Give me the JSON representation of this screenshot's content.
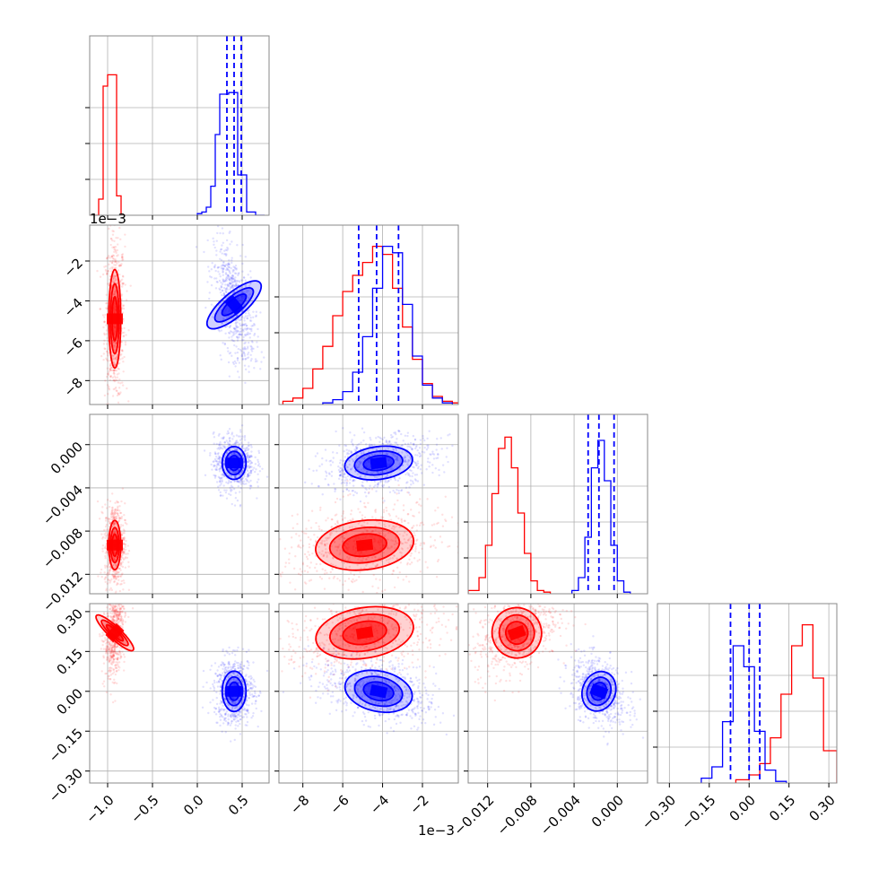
{
  "chart_data": {
    "type": "corner",
    "description_free": true,
    "colors": {
      "series_a": "#ff0000",
      "series_b": "#0000ff",
      "grid": "#b0b0b0",
      "frame": "#888888"
    },
    "series": [
      {
        "color": "#ff0000",
        "param_centers": [
          -0.92,
          -0.0049,
          -0.0093,
          0.22
        ],
        "param_spreads": [
          0.035,
          0.0013,
          0.0012,
          0.05
        ],
        "quantiles": null
      },
      {
        "color": "#0000ff",
        "param_centers": [
          0.41,
          -0.0042,
          -0.0017,
          0.0
        ],
        "param_spreads": [
          0.07,
          0.0009,
          0.0008,
          0.04
        ],
        "quantiles": [
          [
            0.33,
            0.41,
            0.49
          ],
          [
            -0.0052,
            -0.0043,
            -0.0032
          ],
          [
            -0.0027,
            -0.0017,
            -0.0003
          ],
          [
            -0.07,
            0.0,
            0.04
          ]
        ]
      }
    ],
    "axes": [
      {
        "range": [
          -1.2,
          0.8
        ],
        "ticks": [
          -1.0,
          -0.5,
          0.0,
          0.5
        ],
        "tick_labels": [
          "−1.0",
          "−0.5",
          "0.0",
          "0.5"
        ],
        "offset_text": ""
      },
      {
        "range": [
          -0.0092,
          -0.0002
        ],
        "ticks": [
          -0.008,
          -0.006,
          -0.004,
          -0.002
        ],
        "tick_labels": [
          "−8",
          "−6",
          "−4",
          "−2"
        ],
        "offset_text": "1e−3"
      },
      {
        "range": [
          -0.0138,
          0.0028
        ],
        "ticks": [
          -0.012,
          -0.008,
          -0.004,
          0.0
        ],
        "tick_labels": [
          "−0.012",
          "−0.008",
          "−0.004",
          "0.000"
        ],
        "offset_text": ""
      },
      {
        "range": [
          -0.345,
          0.33
        ],
        "ticks": [
          -0.3,
          -0.15,
          0.0,
          0.15,
          0.3
        ],
        "tick_labels": [
          "−0.30",
          "−0.15",
          "0.00",
          "0.15",
          "0.30"
        ],
        "offset_text": ""
      }
    ],
    "diagonal_histograms": [
      {
        "series_a_counts": [
          0,
          0.1,
          0.8,
          0.87,
          0.12,
          0
        ],
        "series_a_bins": [
          -1.2,
          -1.1,
          -1.05,
          -1.0,
          -0.9,
          -0.85,
          -0.8
        ],
        "series_b_counts": [
          0.01,
          0.02,
          0.05,
          0.18,
          0.5,
          0.75,
          0.76,
          0.25,
          0.02,
          0
        ],
        "series_b_bins": [
          0.0,
          0.05,
          0.1,
          0.15,
          0.2,
          0.25,
          0.35,
          0.45,
          0.55,
          0.65,
          0.75
        ]
      },
      {
        "series_a_counts": [
          0.02,
          0.04,
          0.1,
          0.22,
          0.36,
          0.55,
          0.7,
          0.8,
          0.88,
          0.98,
          0.93,
          0.72,
          0.48,
          0.28,
          0.13,
          0.05,
          0.02,
          0.01
        ],
        "series_a_bins": [
          -9.0,
          -8.5,
          -8.0,
          -7.5,
          -7.0,
          -6.5,
          -6.0,
          -5.5,
          -5.0,
          -4.5,
          -4.0,
          -3.5,
          -3.0,
          -2.5,
          -2.0,
          -1.5,
          -1.0,
          -0.5,
          0.0
        ],
        "series_b_counts": [
          0.01,
          0.03,
          0.08,
          0.2,
          0.42,
          0.72,
          0.98,
          0.94,
          0.62,
          0.3,
          0.12,
          0.04,
          0.01
        ],
        "series_b_bins": [
          -7.0,
          -6.5,
          -6.0,
          -5.5,
          -5.0,
          -4.5,
          -4.0,
          -3.5,
          -3.0,
          -2.5,
          -2.0,
          -1.5,
          -1.0,
          -0.5
        ]
      },
      {
        "series_a_counts": [
          0.02,
          0.1,
          0.3,
          0.62,
          0.9,
          0.97,
          0.78,
          0.5,
          0.25,
          0.08,
          0.02,
          0.01
        ],
        "series_a_bins": [
          -0.0138,
          -0.0128,
          -0.0122,
          -0.0116,
          -0.011,
          -0.0104,
          -0.0098,
          -0.0092,
          -0.0086,
          -0.008,
          -0.0074,
          -0.0068,
          -0.0062
        ],
        "series_b_counts": [
          0.02,
          0.1,
          0.35,
          0.78,
          0.95,
          0.7,
          0.3,
          0.08,
          0.01
        ],
        "series_b_bins": [
          -0.0042,
          -0.0036,
          -0.003,
          -0.0024,
          -0.0018,
          -0.0012,
          -0.0006,
          0.0,
          0.0006,
          0.0012
        ]
      },
      {
        "series_a_counts": [
          0.02,
          0.05,
          0.12,
          0.28,
          0.55,
          0.85,
          0.98,
          0.65,
          0.2
        ],
        "series_a_bins": [
          -0.05,
          0.0,
          0.04,
          0.08,
          0.12,
          0.16,
          0.2,
          0.24,
          0.28,
          0.33
        ],
        "series_b_counts": [
          0.03,
          0.1,
          0.38,
          0.85,
          0.72,
          0.32,
          0.08,
          0.01
        ],
        "series_b_bins": [
          -0.18,
          -0.14,
          -0.1,
          -0.06,
          -0.02,
          0.02,
          0.06,
          0.1,
          0.14
        ]
      }
    ],
    "grid": true
  }
}
